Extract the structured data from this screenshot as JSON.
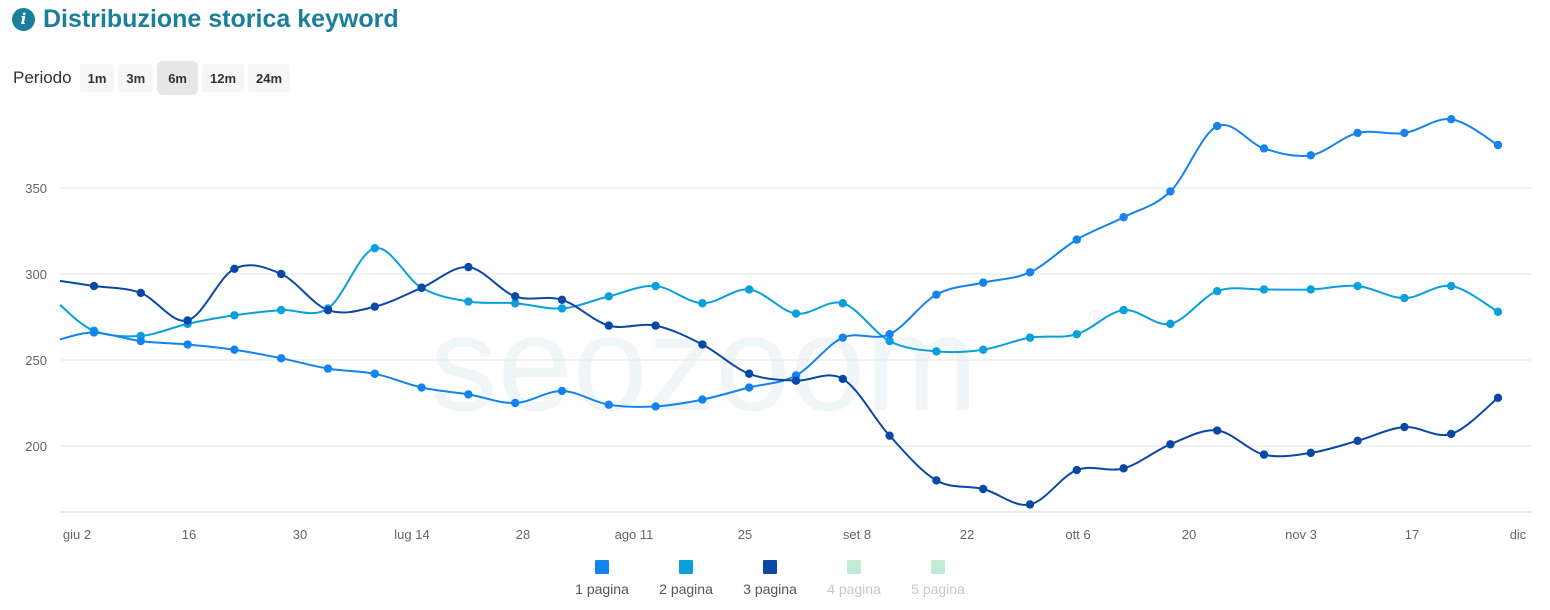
{
  "header": {
    "icon": "info-icon",
    "icon_glyph": "i",
    "title": "Distribuzione storica keyword",
    "accent_color": "#1a7f9c",
    "icon_color": "#1a7f9c"
  },
  "period": {
    "label": "Periodo",
    "options": [
      "1m",
      "3m",
      "6m",
      "12m",
      "24m"
    ],
    "active": "6m"
  },
  "watermark": {
    "icon": "seozoom-logo",
    "text": "seozoom",
    "mark": "®"
  },
  "chart_data": {
    "type": "line",
    "x_tick_labels": [
      "giu 2",
      "16",
      "30",
      "lug 14",
      "28",
      "ago 11",
      "25",
      "set 8",
      "22",
      "ott 6",
      "20",
      "nov 3",
      "17",
      "dic"
    ],
    "y_ticks": [
      200,
      250,
      300,
      350
    ],
    "ylim": [
      165,
      395
    ],
    "grid": true,
    "legend_position": "bottom-center",
    "series": [
      {
        "name": "1 pagina",
        "color": "#1583ee",
        "visible": true,
        "lead": 262,
        "values": [
          266,
          261,
          259,
          256,
          251,
          245,
          242,
          234,
          230,
          225,
          232,
          224,
          223,
          227,
          234,
          241,
          263,
          265,
          288,
          295,
          301,
          320,
          333,
          348,
          386,
          373,
          369,
          382,
          382,
          390,
          375
        ]
      },
      {
        "name": "2 pagina",
        "color": "#0aa0dd",
        "visible": true,
        "lead": 282,
        "values": [
          267,
          264,
          271,
          276,
          279,
          280,
          315,
          292,
          284,
          283,
          280,
          287,
          293,
          283,
          291,
          277,
          283,
          261,
          255,
          256,
          263,
          265,
          279,
          271,
          290,
          291,
          291,
          293,
          286,
          293,
          278
        ]
      },
      {
        "name": "3 pagina",
        "color": "#0a48a8",
        "visible": true,
        "lead": 296,
        "values": [
          293,
          289,
          273,
          303,
          300,
          279,
          281,
          292,
          304,
          287,
          285,
          270,
          270,
          259,
          242,
          238,
          239,
          206,
          180,
          175,
          166,
          186,
          187,
          201,
          209,
          195,
          196,
          203,
          211,
          207,
          228
        ]
      },
      {
        "name": "4 pagina",
        "color": "#c3ecd6",
        "visible": false,
        "lead": null,
        "values": []
      },
      {
        "name": "5 pagina",
        "color": "#c3ecd6",
        "visible": false,
        "lead": null,
        "values": []
      }
    ]
  }
}
